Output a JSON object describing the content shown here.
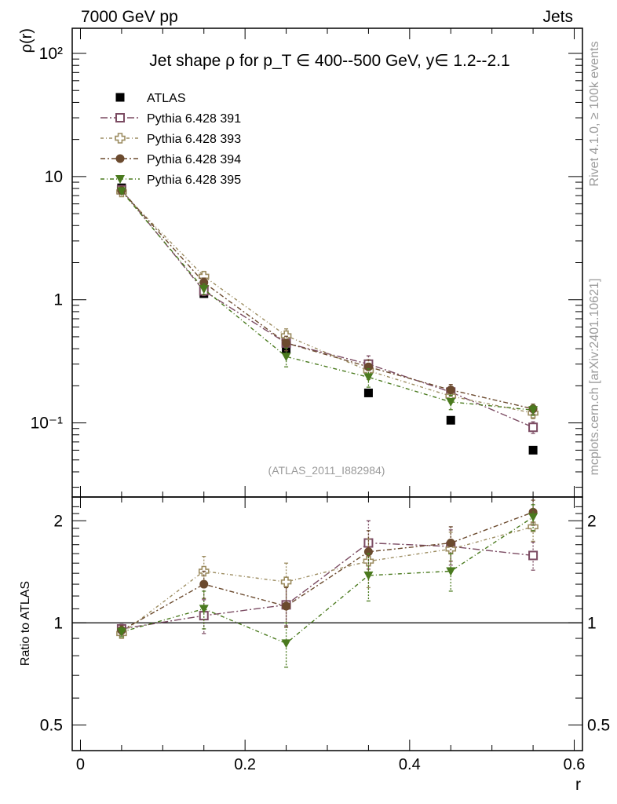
{
  "header": {
    "left_label": "7000 GeV pp",
    "right_label": "Jets"
  },
  "side_labels": {
    "rivet": "Rivet 4.1.0, ≥ 100k events",
    "mcplots": "mcplots.cern.ch [arXiv:2401.10621]"
  },
  "chart_data": {
    "type": "scatter",
    "title": "Jet shape ρ for p_T ∈ 400--500 GeV, y∈ 1.2--2.1",
    "analysis_id": "(ATLAS_2011_I882984)",
    "x": [
      0.05,
      0.15,
      0.25,
      0.35,
      0.45,
      0.55
    ],
    "xlabel": "r",
    "xlim": [
      -0.01,
      0.61
    ],
    "xticks": [
      "0",
      "0.2",
      "0.4",
      "0.6"
    ],
    "main": {
      "ylabel": "ρ(r)",
      "yscale": "log",
      "ylim": [
        0.025,
        160
      ],
      "yticks": [
        "10⁻¹",
        "1",
        "10",
        "10²"
      ]
    },
    "ratio": {
      "ylabel": "Ratio to ATLAS",
      "yscale": "log",
      "ylim": [
        0.42,
        2.35
      ],
      "yticks": [
        "0.5",
        "1",
        "2"
      ],
      "reference": 1
    },
    "series": [
      {
        "name": "ATLAS",
        "marker": "square-filled",
        "color": "#000000",
        "values": [
          8.1,
          1.12,
          0.395,
          0.175,
          0.105,
          0.06
        ],
        "errors": [
          0.3,
          0.05,
          0.02,
          0.01,
          0.006,
          0.004
        ],
        "ratio": [
          1,
          1,
          1,
          1,
          1,
          1
        ],
        "ratio_errors": [
          0,
          0,
          0,
          0,
          0,
          0
        ]
      },
      {
        "name": "Pythia 6.428 391",
        "marker": "square-open",
        "color": "#7b4b62",
        "values": [
          7.8,
          1.18,
          0.445,
          0.3,
          0.178,
          0.092
        ],
        "errors": [
          0.2,
          0.1,
          0.06,
          0.05,
          0.02,
          0.01
        ],
        "ratio": [
          0.96,
          1.05,
          1.13,
          1.72,
          1.68,
          1.58
        ],
        "ratio_errors": [
          0.03,
          0.12,
          0.15,
          0.28,
          0.2,
          0.15
        ]
      },
      {
        "name": "Pythia 6.428 393",
        "marker": "cross-open",
        "color": "#9c8c60",
        "values": [
          7.5,
          1.55,
          0.51,
          0.265,
          0.165,
          0.12
        ],
        "errors": [
          0.2,
          0.15,
          0.07,
          0.04,
          0.02,
          0.012
        ],
        "ratio": [
          0.93,
          1.42,
          1.32,
          1.52,
          1.65,
          1.92
        ],
        "ratio_errors": [
          0.03,
          0.15,
          0.18,
          0.25,
          0.2,
          0.18
        ]
      },
      {
        "name": "Pythia 6.428 394",
        "marker": "circle-filled",
        "color": "#6b4a2e",
        "values": [
          7.7,
          1.38,
          0.445,
          0.285,
          0.185,
          0.13
        ],
        "errors": [
          0.2,
          0.12,
          0.06,
          0.04,
          0.02,
          0.012
        ],
        "ratio": [
          0.95,
          1.3,
          1.12,
          1.62,
          1.72,
          2.12
        ],
        "ratio_errors": [
          0.03,
          0.12,
          0.15,
          0.25,
          0.2,
          0.18
        ]
      },
      {
        "name": "Pythia 6.428 395",
        "marker": "triangle-down-filled",
        "color": "#4a7a1e",
        "values": [
          7.6,
          1.22,
          0.345,
          0.235,
          0.148,
          0.127
        ],
        "errors": [
          0.2,
          0.12,
          0.06,
          0.04,
          0.02,
          0.012
        ],
        "ratio": [
          0.94,
          1.1,
          0.87,
          1.38,
          1.42,
          2.05
        ],
        "ratio_errors": [
          0.03,
          0.14,
          0.13,
          0.22,
          0.18,
          0.18
        ]
      }
    ]
  }
}
